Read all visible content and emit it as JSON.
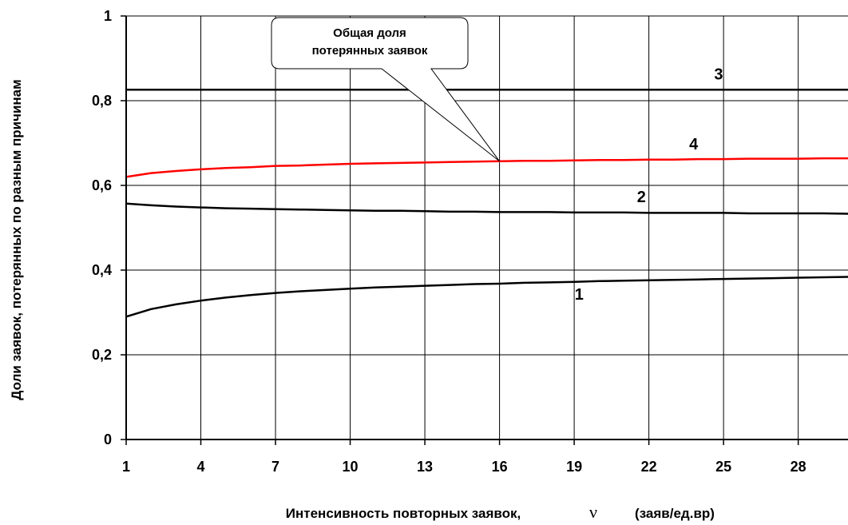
{
  "chart_data": {
    "type": "line",
    "xlabel": "Интенсивность повторных заявок,",
    "xlabel_symbol": "ν",
    "xlabel_units": "(заяв/ед.вр)",
    "ylabel": "Доли заявок, потерянных по разным причинам",
    "x_ticks": [
      "1",
      "4",
      "7",
      "10",
      "13",
      "16",
      "19",
      "22",
      "25",
      "28"
    ],
    "y_ticks": [
      "0",
      "0,2",
      "0,4",
      "0,6",
      "0,8",
      "1"
    ],
    "xlim": [
      1,
      30
    ],
    "ylim": [
      0,
      1
    ],
    "grid": true,
    "legend": "none",
    "x": [
      1,
      2,
      3,
      4,
      5,
      6,
      7,
      8,
      9,
      10,
      11,
      12,
      13,
      14,
      15,
      16,
      17,
      18,
      19,
      20,
      21,
      22,
      23,
      24,
      25,
      26,
      27,
      28,
      29,
      30
    ],
    "series": [
      {
        "name": "1",
        "color": "#000000",
        "values": [
          0.29,
          0.308,
          0.319,
          0.328,
          0.335,
          0.341,
          0.346,
          0.35,
          0.353,
          0.356,
          0.359,
          0.361,
          0.363,
          0.365,
          0.367,
          0.368,
          0.37,
          0.371,
          0.372,
          0.374,
          0.375,
          0.376,
          0.377,
          0.378,
          0.379,
          0.38,
          0.381,
          0.382,
          0.383,
          0.384
        ]
      },
      {
        "name": "2",
        "color": "#000000",
        "values": [
          0.557,
          0.553,
          0.55,
          0.548,
          0.546,
          0.545,
          0.544,
          0.543,
          0.542,
          0.541,
          0.54,
          0.54,
          0.539,
          0.538,
          0.538,
          0.537,
          0.537,
          0.537,
          0.536,
          0.536,
          0.536,
          0.535,
          0.535,
          0.535,
          0.535,
          0.534,
          0.534,
          0.534,
          0.534,
          0.533
        ]
      },
      {
        "name": "3",
        "color": "#000000",
        "values": [
          0.826,
          0.826,
          0.826,
          0.826,
          0.826,
          0.826,
          0.826,
          0.826,
          0.826,
          0.826,
          0.826,
          0.826,
          0.826,
          0.826,
          0.826,
          0.826,
          0.826,
          0.826,
          0.826,
          0.826,
          0.826,
          0.826,
          0.826,
          0.826,
          0.826,
          0.826,
          0.826,
          0.826,
          0.826,
          0.826
        ]
      },
      {
        "name": "4",
        "color": "#ff0000",
        "values": [
          0.62,
          0.629,
          0.634,
          0.638,
          0.641,
          0.643,
          0.646,
          0.647,
          0.649,
          0.651,
          0.652,
          0.653,
          0.654,
          0.655,
          0.656,
          0.657,
          0.658,
          0.658,
          0.659,
          0.66,
          0.66,
          0.661,
          0.661,
          0.662,
          0.662,
          0.663,
          0.663,
          0.663,
          0.664,
          0.664
        ]
      }
    ],
    "series_labels": [
      {
        "series": "1",
        "text": "1",
        "x": 19.2,
        "y": 0.33
      },
      {
        "series": "2",
        "text": "2",
        "x": 21.7,
        "y": 0.56
      },
      {
        "series": "3",
        "text": "3",
        "x": 24.8,
        "y": 0.85
      },
      {
        "series": "4",
        "text": "4",
        "x": 23.8,
        "y": 0.685
      }
    ],
    "annotation": {
      "lines": [
        "Общая доля",
        "потерянных заявок"
      ],
      "points_to": {
        "x": 16,
        "y": 0.657
      }
    }
  }
}
